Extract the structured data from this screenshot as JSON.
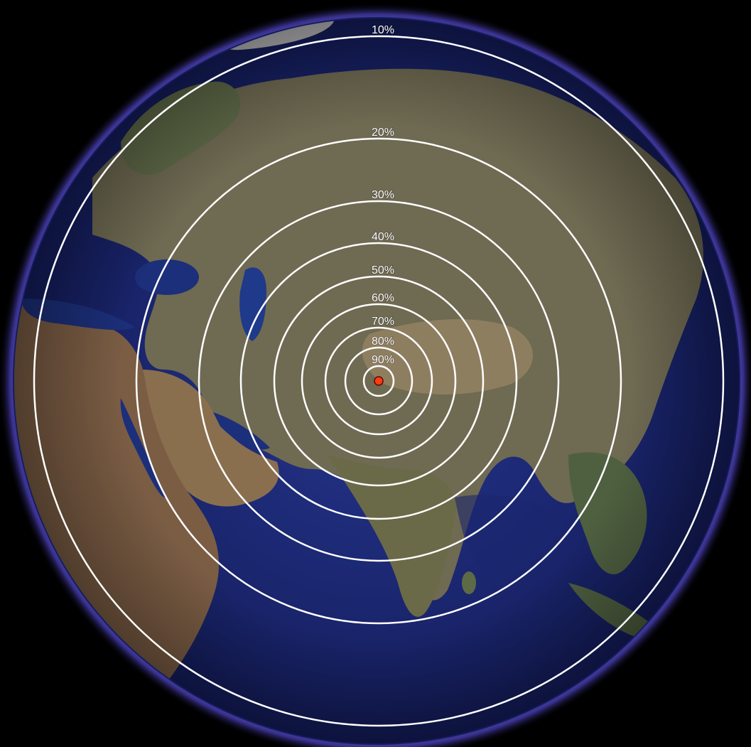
{
  "map": {
    "projection": "orthographic globe view",
    "imagery": "satellite",
    "center_marker": {
      "color": "#ff3b12",
      "outline": "#5a0a00"
    },
    "ring_color": "#ffffff",
    "atmosphere_color": "#7a6cff",
    "ocean_color": "#1c2a78",
    "border_color": "#d8d24a",
    "rings": [
      {
        "label": "90%"
      },
      {
        "label": "80%"
      },
      {
        "label": "70%"
      },
      {
        "label": "60%"
      },
      {
        "label": "50%"
      },
      {
        "label": "40%"
      },
      {
        "label": "30%"
      },
      {
        "label": "20%"
      },
      {
        "label": "10%"
      }
    ]
  }
}
